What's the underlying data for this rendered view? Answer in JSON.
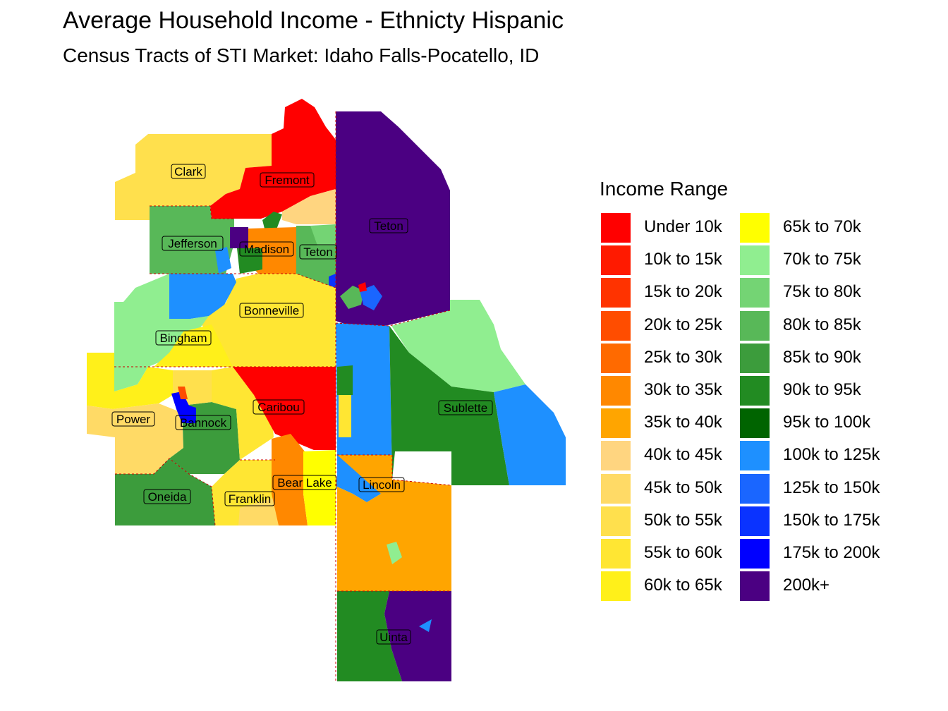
{
  "title": "Average Household Income - Ethnicty Hispanic",
  "subtitle": "Census Tracts of STI Market: Idaho Falls-Pocatello, ID",
  "legend": {
    "title": "Income Range",
    "items": [
      {
        "label": "Under 10k",
        "color": "#FF0000"
      },
      {
        "label": "10k to 15k",
        "color": "#FF1A00"
      },
      {
        "label": "15k to 20k",
        "color": "#FF3300"
      },
      {
        "label": "20k to 25k",
        "color": "#FF4D00"
      },
      {
        "label": "25k to 30k",
        "color": "#FF6A00"
      },
      {
        "label": "30k to 35k",
        "color": "#FF8800"
      },
      {
        "label": "35k to 40k",
        "color": "#FFA500"
      },
      {
        "label": "40k to 45k",
        "color": "#FFD580"
      },
      {
        "label": "45k to 50k",
        "color": "#FFDA66"
      },
      {
        "label": "50k to 55k",
        "color": "#FFE04D"
      },
      {
        "label": "55k to 60k",
        "color": "#FFE633"
      },
      {
        "label": "60k to 65k",
        "color": "#FFF01A"
      },
      {
        "label": "65k to 70k",
        "color": "#FFFF00"
      },
      {
        "label": "70k to 75k",
        "color": "#90EE90"
      },
      {
        "label": "75k to 80k",
        "color": "#74D474"
      },
      {
        "label": "80k to 85k",
        "color": "#58B858"
      },
      {
        "label": "85k to 90k",
        "color": "#3C9C3C"
      },
      {
        "label": "90k to 95k",
        "color": "#228B22"
      },
      {
        "label": "95k to 100k",
        "color": "#006400"
      },
      {
        "label": "100k to 125k",
        "color": "#1E90FF"
      },
      {
        "label": "125k to 150k",
        "color": "#1A66FF"
      },
      {
        "label": "150k to 175k",
        "color": "#0A33FF"
      },
      {
        "label": "175k to 200k",
        "color": "#0000FF"
      },
      {
        "label": "200k+",
        "color": "#4B0082"
      }
    ]
  },
  "counties": [
    "Clark",
    "Fremont",
    "Jefferson",
    "Madison",
    "Teton",
    "Teton",
    "Bonneville",
    "Bingham",
    "Power",
    "Bannock",
    "Caribou",
    "Sublette",
    "Oneida",
    "Franklin",
    "Bear Lake",
    "Lincoln",
    "Uinta"
  ]
}
